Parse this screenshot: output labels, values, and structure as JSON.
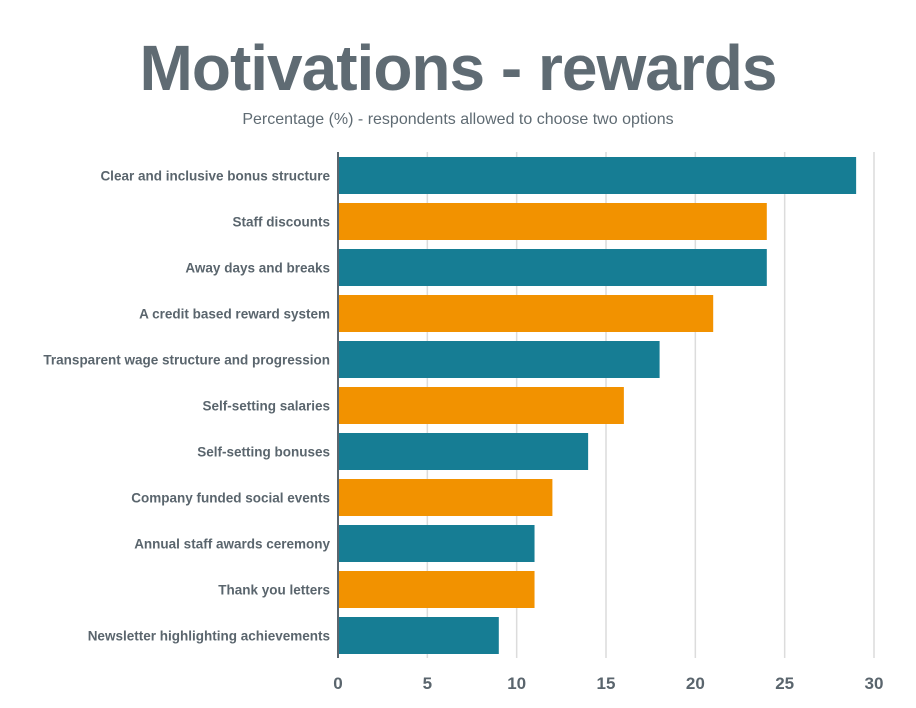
{
  "chart_data": {
    "type": "bar",
    "orientation": "horizontal",
    "title": "Motivations - rewards",
    "subtitle": "Percentage (%) - respondents allowed to choose two options",
    "xlabel": "",
    "ylabel": "",
    "categories": [
      "Clear and inclusive bonus structure",
      "Staff discounts",
      "Away days and breaks",
      "A credit based reward system",
      "Transparent wage structure and progression",
      "Self-setting salaries",
      "Self-setting bonuses",
      "Company funded social events",
      "Annual staff awards ceremony",
      "Thank you letters",
      "Newsletter highlighting achievements"
    ],
    "values": [
      29,
      24,
      24,
      21,
      18,
      16,
      14,
      12,
      11,
      11,
      9
    ],
    "xlim": [
      0,
      30
    ],
    "xticks": [
      0,
      5,
      10,
      15,
      20,
      25,
      30
    ],
    "grid": true,
    "legend": "none",
    "colors": {
      "teal": "#167d94",
      "orange": "#f29200",
      "text": "#5a656d",
      "title": "#5f6b73",
      "grid": "#dcdcdc",
      "axis": "#5a656d"
    },
    "bar_color_pattern": [
      "teal",
      "orange"
    ]
  }
}
